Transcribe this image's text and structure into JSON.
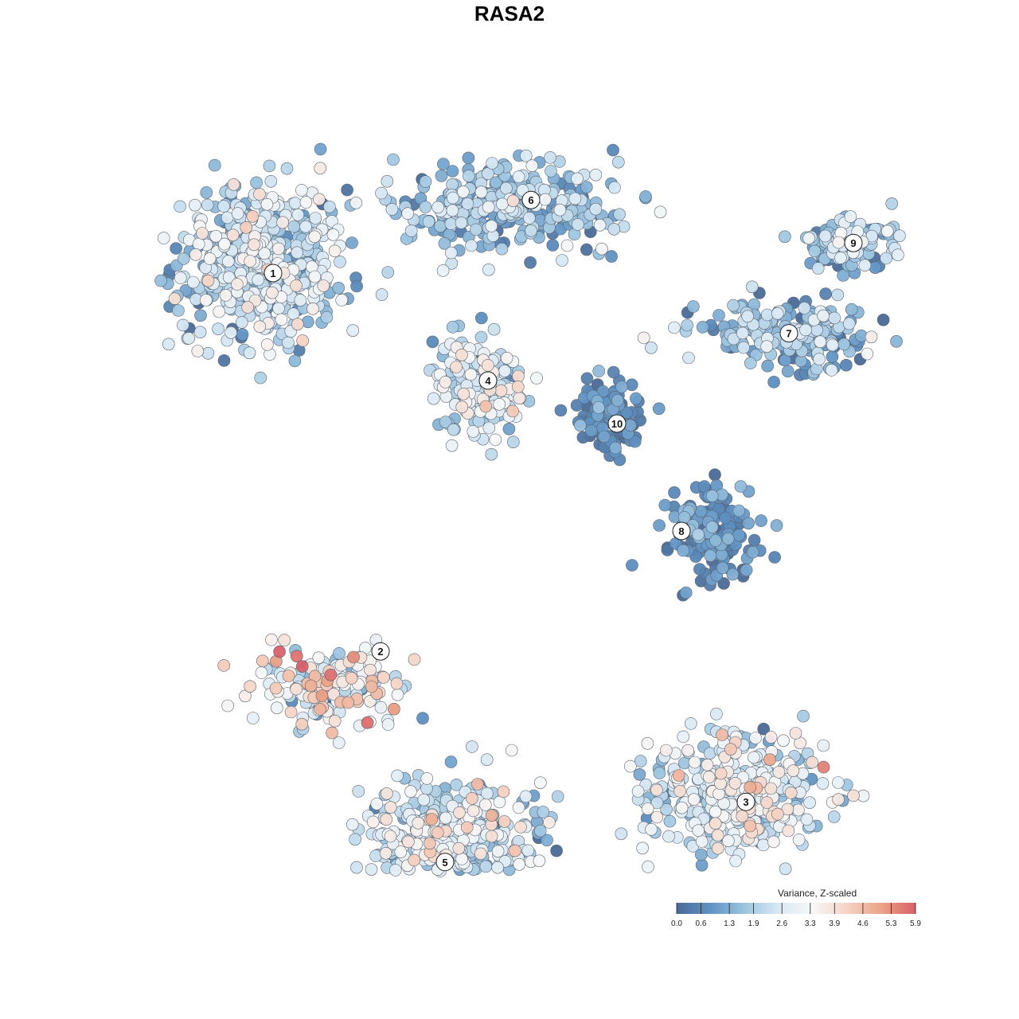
{
  "chart_data": {
    "type": "scatter",
    "title": "RASA2",
    "xlabel": "",
    "ylabel": "",
    "grid": false,
    "legend_placement": "bottom-right",
    "colorbar": {
      "title": "Variance, Z-scaled",
      "ticks": [
        "0.0",
        "0.6",
        "1.3",
        "1.9",
        "2.6",
        "3.3",
        "3.9",
        "4.6",
        "5.3",
        "5.9"
      ],
      "min": 0.0,
      "max": 5.9,
      "colors": [
        "#4a6a96",
        "#5f93c4",
        "#9dc5e0",
        "#d9e9f4",
        "#f7f7f7",
        "#f6d3c3",
        "#eba387",
        "#d9606a"
      ]
    },
    "clusters": [
      {
        "label": "1",
        "x": -0.55,
        "y": 0.55,
        "mean_value": 2.1
      },
      {
        "label": "2",
        "x": -0.3,
        "y": -0.33,
        "mean_value": 3.2
      },
      {
        "label": "3",
        "x": 0.55,
        "y": -0.68,
        "mean_value": 2.6
      },
      {
        "label": "4",
        "x": -0.05,
        "y": 0.3,
        "mean_value": 2.4
      },
      {
        "label": "5",
        "x": -0.15,
        "y": -0.82,
        "mean_value": 2.3
      },
      {
        "label": "6",
        "x": 0.05,
        "y": 0.72,
        "mean_value": 1.6
      },
      {
        "label": "7",
        "x": 0.65,
        "y": 0.41,
        "mean_value": 1.4
      },
      {
        "label": "8",
        "x": 0.4,
        "y": -0.05,
        "mean_value": 0.6
      },
      {
        "label": "9",
        "x": 0.8,
        "y": 0.62,
        "mean_value": 1.7
      },
      {
        "label": "10",
        "x": 0.25,
        "y": 0.2,
        "mean_value": 0.5
      }
    ]
  }
}
